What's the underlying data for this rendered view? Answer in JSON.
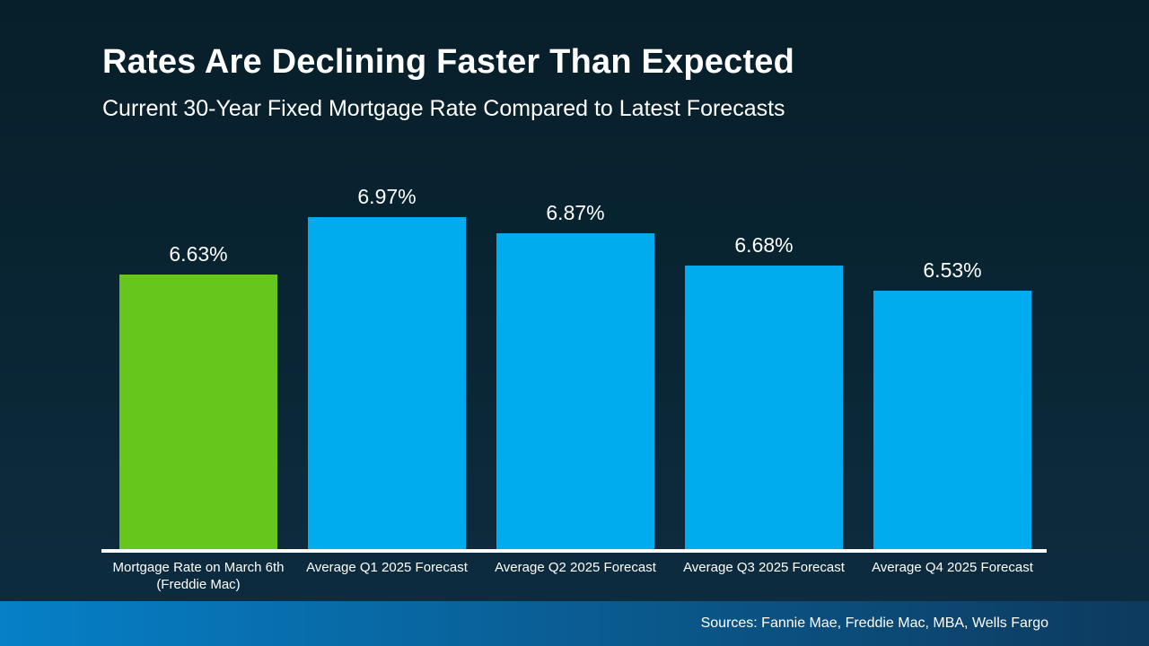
{
  "slide": {
    "title": "Rates Are Declining Faster Than Expected",
    "subtitle": "Current 30-Year Fixed Mortgage Rate Compared to Latest Forecasts",
    "source_note": "Sources: Fannie Mae, Freddie Mac, MBA, Wells Fargo"
  },
  "colors": {
    "background_top": "#071f2a",
    "background_bottom": "#0e2c40",
    "bar_current": "#66c61c",
    "bar_forecast": "#00abee",
    "axis_line": "#ffffff",
    "text": "#ffffff",
    "footer_gradient_left": "#0680c8",
    "footer_gradient_right": "#0d3a5e"
  },
  "chart_data": {
    "type": "bar",
    "title": "Rates Are Declining Faster Than Expected",
    "subtitle": "Current 30-Year Fixed Mortgage Rate Compared to Latest Forecasts",
    "categories": [
      "Mortgage Rate on March 6th\n(Freddie Mac)",
      "Average Q1 2025 Forecast",
      "Average Q2 2025 Forecast",
      "Average Q3 2025 Forecast",
      "Average Q4 2025 Forecast"
    ],
    "values": [
      6.63,
      6.97,
      6.87,
      6.68,
      6.53
    ],
    "value_labels": [
      "6.63%",
      "6.97%",
      "6.87%",
      "6.68%",
      "6.53%"
    ],
    "bar_colors": [
      "#66c61c",
      "#00abee",
      "#00abee",
      "#00abee",
      "#00abee"
    ],
    "xlabel": "",
    "ylabel": "",
    "ylim": [
      5.0,
      7.2
    ],
    "grid": false,
    "legend": "none",
    "data_labels": true
  }
}
